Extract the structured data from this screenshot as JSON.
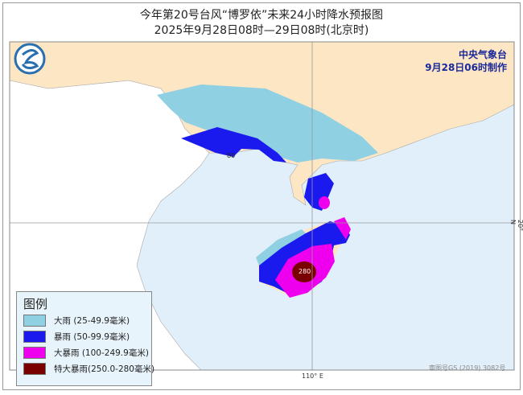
{
  "header": {
    "title": "今年第20号台风“博罗依”未来24小时降水预报图",
    "subtitle": "2025年9月28日08时—29日08时(北京时)"
  },
  "issuer": {
    "name": "中央气象台",
    "made_time": "9月28日06时制作",
    "logo_icon": "cma-logo-icon"
  },
  "map": {
    "longitude_label": "110° E",
    "latitude_label": "20° N",
    "contour_labels": [
      "80",
      "280"
    ],
    "approval_number": "审图号GS (2019) 3082号",
    "colors": {
      "china_land": "#fde6c4",
      "other_land": "#ffffff",
      "sea": "#e1effa"
    }
  },
  "legend": {
    "title": "图例",
    "items": [
      {
        "label": "大雨 (25-49.9毫米)",
        "color": "#8fd0e3"
      },
      {
        "label": "暴雨 (50-99.9毫米)",
        "color": "#1a1aee"
      },
      {
        "label": "大暴雨 (100-249.9毫米)",
        "color": "#ee00ee"
      },
      {
        "label": "特大暴雨(250.0-280毫米)",
        "color": "#7a0000"
      }
    ]
  }
}
